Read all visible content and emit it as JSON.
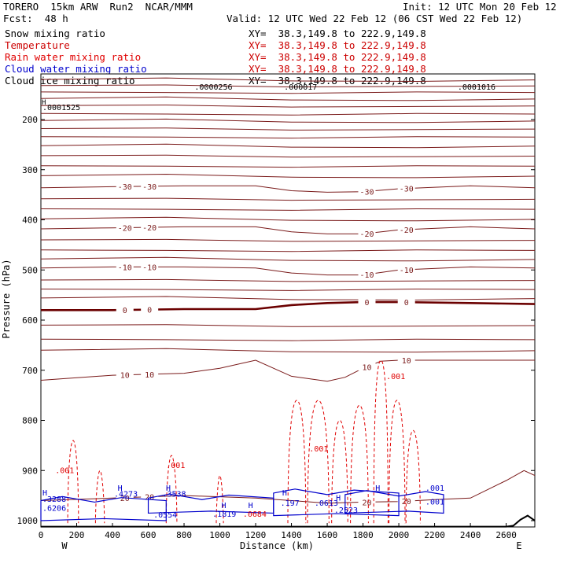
{
  "header": {
    "model": "TORERO",
    "resolution": "15km ARW",
    "run": "Run2",
    "org": "NCAR/MMM",
    "init": "Init: 12 UTC Mon 20 Feb 12",
    "fcst_label": "Fcst:",
    "fcst_value": "48 h",
    "valid": "Valid: 12 UTC Wed 22 Feb 12 (06 CST Wed 22 Feb 12)"
  },
  "fields": [
    {
      "name": "Snow mixing ratio",
      "color": "#000000",
      "xsect": "XY=  38.3,149.8 to 222.9,149.8"
    },
    {
      "name": "Temperature",
      "color": "#cc0000",
      "xsect": "XY=  38.3,149.8 to 222.9,149.8"
    },
    {
      "name": "Rain water mixing ratio",
      "color": "#e00000",
      "xsect": "XY=  38.3,149.8 to 222.9,149.8"
    },
    {
      "name": "Cloud water mixing ratio",
      "color": "#0000cc",
      "xsect": "XY=  38.3,149.8 to 222.9,149.8"
    },
    {
      "name": "Cloud ice mixing ratio",
      "color": "#000000",
      "xsect": "XY=  38.3,149.8 to 222.9,149.8"
    }
  ],
  "colors": {
    "temperature": "#7a1a1a",
    "zero_isotherm": "#6b0000",
    "rain": "#e00000",
    "cloud_water": "#0000cc",
    "terrain": "#000000"
  },
  "chart_data": {
    "type": "line",
    "xlabel": "Distance (km)",
    "ylabel": "Pressure (hPa)",
    "xlim": [
      0,
      2760
    ],
    "ylim": [
      1015,
      100
    ],
    "x_ticks": [
      0,
      200,
      400,
      600,
      800,
      1000,
      1200,
      1400,
      1600,
      1800,
      2000,
      2200,
      2400,
      2600
    ],
    "x_tick_labels": [
      "0",
      "200",
      "400",
      "600",
      "800",
      "1000",
      "1200",
      "1400",
      "1600",
      "1800",
      "2000",
      "2200",
      "2400",
      "2600"
    ],
    "y_ticks": [
      200,
      300,
      400,
      500,
      600,
      700,
      800,
      900,
      1000
    ],
    "y_tick_labels": [
      "200",
      "300",
      "400",
      "500",
      "600",
      "700",
      "800",
      "900",
      "1000"
    ],
    "end_labels": {
      "left": "W",
      "right": "E"
    },
    "temperature_isotherms": [
      {
        "label": "-30",
        "x": [
          0,
          400,
          800,
          1200,
          1400,
          1600,
          1800,
          2000,
          2400,
          2760
        ],
        "p": [
          336,
          334,
          332,
          332,
          342,
          345,
          344,
          338,
          332,
          336
        ]
      },
      {
        "label": "-20",
        "x": [
          0,
          400,
          800,
          1200,
          1400,
          1600,
          1800,
          2000,
          2400,
          2760
        ],
        "p": [
          418,
          416,
          414,
          414,
          424,
          428,
          428,
          420,
          414,
          418
        ]
      },
      {
        "label": "-10",
        "x": [
          0,
          400,
          800,
          1200,
          1400,
          1600,
          1800,
          2000,
          2400,
          2760
        ],
        "p": [
          496,
          494,
          494,
          496,
          506,
          510,
          510,
          500,
          494,
          496
        ]
      },
      {
        "label": "0",
        "x": [
          0,
          400,
          800,
          1200,
          1400,
          1600,
          1800,
          2000,
          2400,
          2760
        ],
        "p": [
          580,
          580,
          578,
          578,
          570,
          566,
          564,
          564,
          566,
          568
        ]
      },
      {
        "label": "10",
        "x": [
          0,
          400,
          800,
          1000,
          1200,
          1400,
          1600,
          1700,
          1800,
          1900,
          2000,
          2200,
          2400,
          2760
        ],
        "p": [
          720,
          710,
          706,
          696,
          680,
          712,
          722,
          714,
          696,
          682,
          680,
          680,
          680,
          680
        ]
      },
      {
        "label": "20",
        "x": [
          0,
          400,
          800,
          1200,
          1600,
          1800,
          2000,
          2200,
          2400,
          2600,
          2700,
          2760
        ],
        "p": [
          960,
          955,
          950,
          955,
          965,
          963,
          962,
          958,
          955,
          920,
          900,
          910
        ]
      }
    ],
    "unlabeled_isotherm_pressures": [
      120,
      132,
      145,
      158,
      172,
      188,
      202,
      218,
      234,
      252,
      272,
      292,
      312,
      358,
      378,
      398,
      440,
      460,
      478,
      520,
      538,
      556,
      610,
      638,
      660
    ],
    "isotherm_labels": [
      "-30",
      "-20",
      "-10",
      "0",
      "10",
      "20"
    ],
    "rain_labels": [
      ".001",
      ".001",
      ".001",
      ".001"
    ],
    "cloud_water_labels": [
      ".4273",
      ".3538",
      ".3288",
      ".6206",
      ".0554",
      ".1819",
      ".197",
      ".0613",
      ".2523",
      ".0684",
      ".001",
      ".001"
    ],
    "snow_labels": [
      ".0000256",
      ".000017",
      ".0001525",
      ".0001016"
    ],
    "extreme_marker": "H",
    "terrain": {
      "x": [
        0,
        2600,
        2640,
        2680,
        2720,
        2760
      ],
      "p": [
        1012,
        1012,
        1010,
        998,
        990,
        1000
      ]
    }
  }
}
